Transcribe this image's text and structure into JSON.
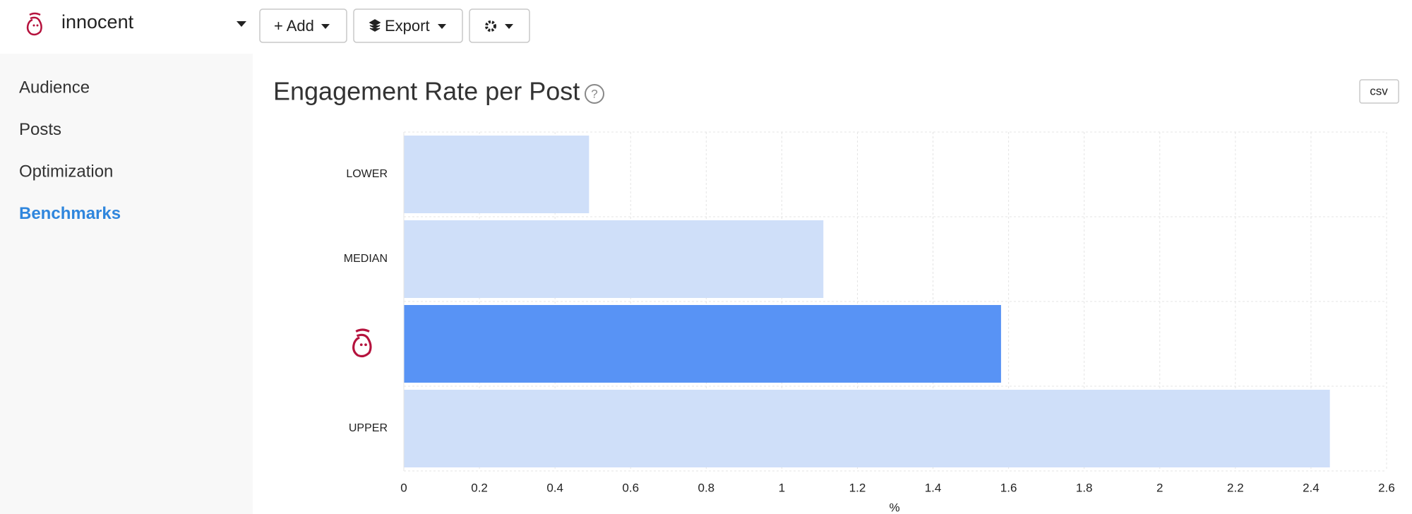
{
  "header": {
    "brand": "innocent",
    "buttons": [
      "+ Add",
      "Export"
    ]
  },
  "sidebar": {
    "items": [
      "Audience",
      "Posts",
      "Optimization",
      "Benchmarks"
    ],
    "active": 3
  },
  "csv_button": "csv",
  "chart_data": {
    "type": "bar",
    "orientation": "horizontal",
    "title": "Engagement Rate per Post",
    "x_label": "%",
    "categories": [
      "LOWER",
      "MEDIAN",
      null,
      "UPPER"
    ],
    "values": [
      0.49,
      1.11,
      1.58,
      2.45
    ],
    "colors": [
      "#cfdff9",
      "#cfdff9",
      "#5893f5",
      "#cfdff9"
    ],
    "xlim": [
      0,
      2.6
    ],
    "xticks": [
      0,
      0.2,
      0.4,
      0.6,
      0.8,
      1,
      1.2,
      1.4,
      1.6,
      1.8,
      2,
      2.2,
      2.4,
      2.6
    ],
    "grid": true
  }
}
